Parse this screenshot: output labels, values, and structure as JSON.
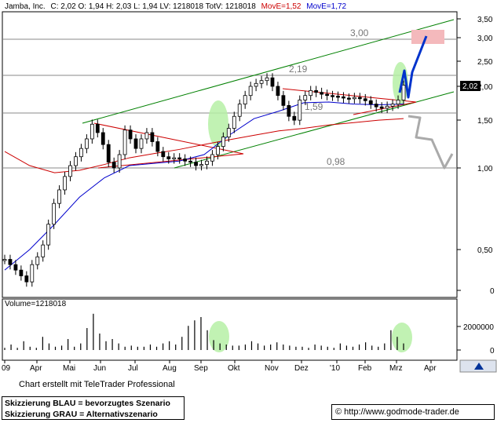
{
  "header": {
    "name": "Jamba, Inc.",
    "ohlc_text": "C: 2,02  O: 1,94  H: 2,03  L: 1,94  LV: 1218018  TotV: 1218018",
    "ma1_text": "MovE=1,52",
    "ma2_text": "MovE=1,72",
    "ma1_color": "#cc0000",
    "ma2_color": "#0000cc"
  },
  "volume_label": "Volume=1218018",
  "footer": {
    "credit": "Chart erstellt mit TeleTrader Professional",
    "legend_blue": "Skizzierung BLAU = bevorzugtes Szenario",
    "legend_grey": "Skizzierung GRAU = Alternativszenario",
    "url": "© http://www.godmode-trader.de"
  },
  "chart_data": {
    "type": "candlestick",
    "price_scale": "log",
    "price_ticks": [
      "3,50",
      "3,00",
      "2,50",
      "2,00",
      "1,50",
      "1,00",
      "0,50",
      "0"
    ],
    "current_price_label": "2,02",
    "volume_ticks": [
      "2000000",
      "0"
    ],
    "x_labels": [
      "09",
      "Apr",
      "Mai",
      "Jun",
      "Jul",
      "Aug",
      "Sep",
      "Okt",
      "Nov",
      "Dez",
      "'10",
      "Feb",
      "Mrz",
      "Apr"
    ],
    "levels": [
      {
        "value": 3.0,
        "label": "3,00"
      },
      {
        "value": 2.19,
        "label": "2,19"
      },
      {
        "value": 1.59,
        "label": "1,59"
      },
      {
        "value": 0.98,
        "label": "0,98"
      }
    ],
    "price_series": [
      0.46,
      0.44,
      0.42,
      0.4,
      0.38,
      0.44,
      0.47,
      0.52,
      0.62,
      0.74,
      0.83,
      0.93,
      1.02,
      1.1,
      1.18,
      1.28,
      1.45,
      1.35,
      1.22,
      1.05,
      1.0,
      1.12,
      1.38,
      1.28,
      1.18,
      1.28,
      1.35,
      1.25,
      1.15,
      1.1,
      1.08,
      1.09,
      1.08,
      1.06,
      1.05,
      1.02,
      1.03,
      1.06,
      1.12,
      1.2,
      1.3,
      1.4,
      1.55,
      1.72,
      1.85,
      2.0,
      2.05,
      2.1,
      2.15,
      2.0,
      1.85,
      1.7,
      1.55,
      1.5,
      1.78,
      1.85,
      1.93,
      1.9,
      1.87,
      1.85,
      1.84,
      1.83,
      1.81,
      1.8,
      1.82,
      1.8,
      1.77,
      1.72,
      1.68,
      1.66,
      1.69,
      1.72,
      1.78,
      2.02
    ],
    "price_start": "2009-01",
    "price_end": "2010-03",
    "ma_slow": [
      1.15,
      1.02,
      0.96,
      0.98,
      1.03,
      1.09,
      1.13,
      1.17,
      1.22,
      1.27,
      1.32,
      1.37,
      1.4,
      1.44,
      1.47,
      1.5,
      1.52
    ],
    "ma_fast": [
      0.42,
      0.5,
      0.62,
      0.78,
      0.92,
      1.02,
      1.04,
      1.06,
      1.12,
      1.32,
      1.52,
      1.62,
      1.74,
      1.75,
      1.72,
      1.71,
      1.72
    ],
    "volume_series": [
      0.2,
      0.5,
      0.2,
      0.8,
      0.3,
      0.2,
      1.2,
      0.6,
      0.3,
      0.4,
      1.0,
      0.3,
      0.6,
      2.0,
      3.3,
      1.5,
      0.8,
      1.0,
      0.6,
      0.3,
      0.4,
      0.3,
      0.3,
      0.5,
      0.3,
      0.6,
      0.8,
      0.5,
      1.2,
      2.2,
      2.7,
      3.0,
      1.8,
      0.9,
      0.6,
      0.5,
      0.4,
      0.4,
      0.5,
      0.8,
      0.6,
      0.4,
      0.5,
      0.7,
      0.5,
      0.4,
      0.3,
      0.3,
      0.2,
      0.5,
      0.4,
      0.3,
      0.2,
      0.6,
      0.4,
      0.3,
      0.5,
      0.7,
      0.4,
      0.3,
      0.6,
      1.8,
      1.2,
      0.6
    ]
  }
}
